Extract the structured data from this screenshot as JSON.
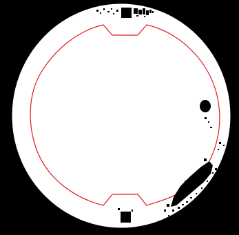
{
  "colors": {
    "background": "#000000",
    "disc": "#ffffff",
    "boundary": "#e0191c",
    "artifact": "#000000"
  },
  "icons": {
    "top_notch": "square-marker-icon",
    "bottom_notch": "square-marker-icon",
    "right_spot": "dark-spot-icon"
  }
}
